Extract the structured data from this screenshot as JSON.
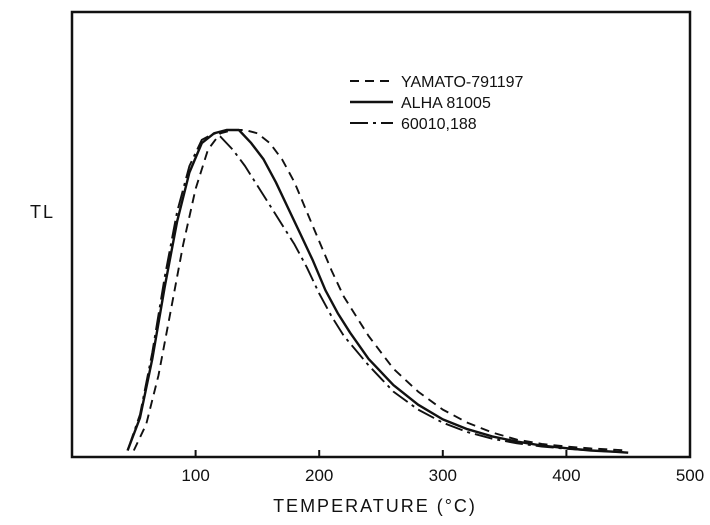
{
  "chart_data": {
    "type": "line",
    "title": "",
    "xlabel": "TEMPERATURE (°C)",
    "ylabel": "TL",
    "xlim": [
      0,
      500
    ],
    "ylim": [
      0,
      1
    ],
    "x_ticks": [
      100,
      200,
      300,
      400,
      500
    ],
    "grid": false,
    "legend_position": "top-right",
    "series": [
      {
        "name": "YAMATO-791197",
        "style": "dashed",
        "color": "#111111",
        "points": [
          [
            50,
            0.02
          ],
          [
            60,
            0.1
          ],
          [
            70,
            0.25
          ],
          [
            80,
            0.45
          ],
          [
            90,
            0.65
          ],
          [
            100,
            0.82
          ],
          [
            110,
            0.94
          ],
          [
            120,
            0.99
          ],
          [
            130,
            1.0
          ],
          [
            140,
            1.0
          ],
          [
            150,
            0.99
          ],
          [
            160,
            0.96
          ],
          [
            170,
            0.91
          ],
          [
            180,
            0.84
          ],
          [
            190,
            0.75
          ],
          [
            200,
            0.66
          ],
          [
            210,
            0.57
          ],
          [
            220,
            0.49
          ],
          [
            240,
            0.37
          ],
          [
            260,
            0.27
          ],
          [
            280,
            0.2
          ],
          [
            300,
            0.145
          ],
          [
            320,
            0.105
          ],
          [
            340,
            0.075
          ],
          [
            360,
            0.053
          ],
          [
            380,
            0.04
          ],
          [
            400,
            0.032
          ],
          [
            420,
            0.026
          ],
          [
            440,
            0.022
          ],
          [
            450,
            0.02
          ]
        ]
      },
      {
        "name": "ALHA 81005",
        "style": "solid",
        "color": "#111111",
        "points": [
          [
            45,
            0.02
          ],
          [
            55,
            0.12
          ],
          [
            65,
            0.3
          ],
          [
            75,
            0.52
          ],
          [
            85,
            0.72
          ],
          [
            95,
            0.87
          ],
          [
            105,
            0.96
          ],
          [
            115,
            0.99
          ],
          [
            125,
            1.0
          ],
          [
            135,
            1.0
          ],
          [
            145,
            0.96
          ],
          [
            155,
            0.91
          ],
          [
            165,
            0.84
          ],
          [
            175,
            0.76
          ],
          [
            185,
            0.68
          ],
          [
            195,
            0.6
          ],
          [
            205,
            0.51
          ],
          [
            215,
            0.44
          ],
          [
            225,
            0.38
          ],
          [
            240,
            0.3
          ],
          [
            260,
            0.22
          ],
          [
            280,
            0.16
          ],
          [
            300,
            0.115
          ],
          [
            320,
            0.085
          ],
          [
            340,
            0.063
          ],
          [
            360,
            0.047
          ],
          [
            380,
            0.035
          ],
          [
            400,
            0.027
          ],
          [
            420,
            0.02
          ],
          [
            440,
            0.016
          ],
          [
            450,
            0.013
          ]
        ]
      },
      {
        "name": "60010,188",
        "style": "dash-dot",
        "color": "#111111",
        "points": [
          [
            45,
            0.02
          ],
          [
            55,
            0.13
          ],
          [
            65,
            0.32
          ],
          [
            75,
            0.55
          ],
          [
            85,
            0.75
          ],
          [
            95,
            0.89
          ],
          [
            105,
            0.97
          ],
          [
            115,
            0.99
          ],
          [
            120,
            0.98
          ],
          [
            130,
            0.94
          ],
          [
            140,
            0.89
          ],
          [
            150,
            0.83
          ],
          [
            160,
            0.77
          ],
          [
            170,
            0.71
          ],
          [
            180,
            0.65
          ],
          [
            190,
            0.58
          ],
          [
            200,
            0.5
          ],
          [
            210,
            0.43
          ],
          [
            220,
            0.37
          ],
          [
            240,
            0.28
          ],
          [
            260,
            0.2
          ],
          [
            280,
            0.145
          ],
          [
            300,
            0.105
          ],
          [
            320,
            0.076
          ],
          [
            340,
            0.056
          ],
          [
            360,
            0.042
          ],
          [
            380,
            0.032
          ],
          [
            400,
            0.025
          ],
          [
            420,
            0.02
          ],
          [
            440,
            0.016
          ],
          [
            450,
            0.014
          ]
        ]
      }
    ]
  }
}
